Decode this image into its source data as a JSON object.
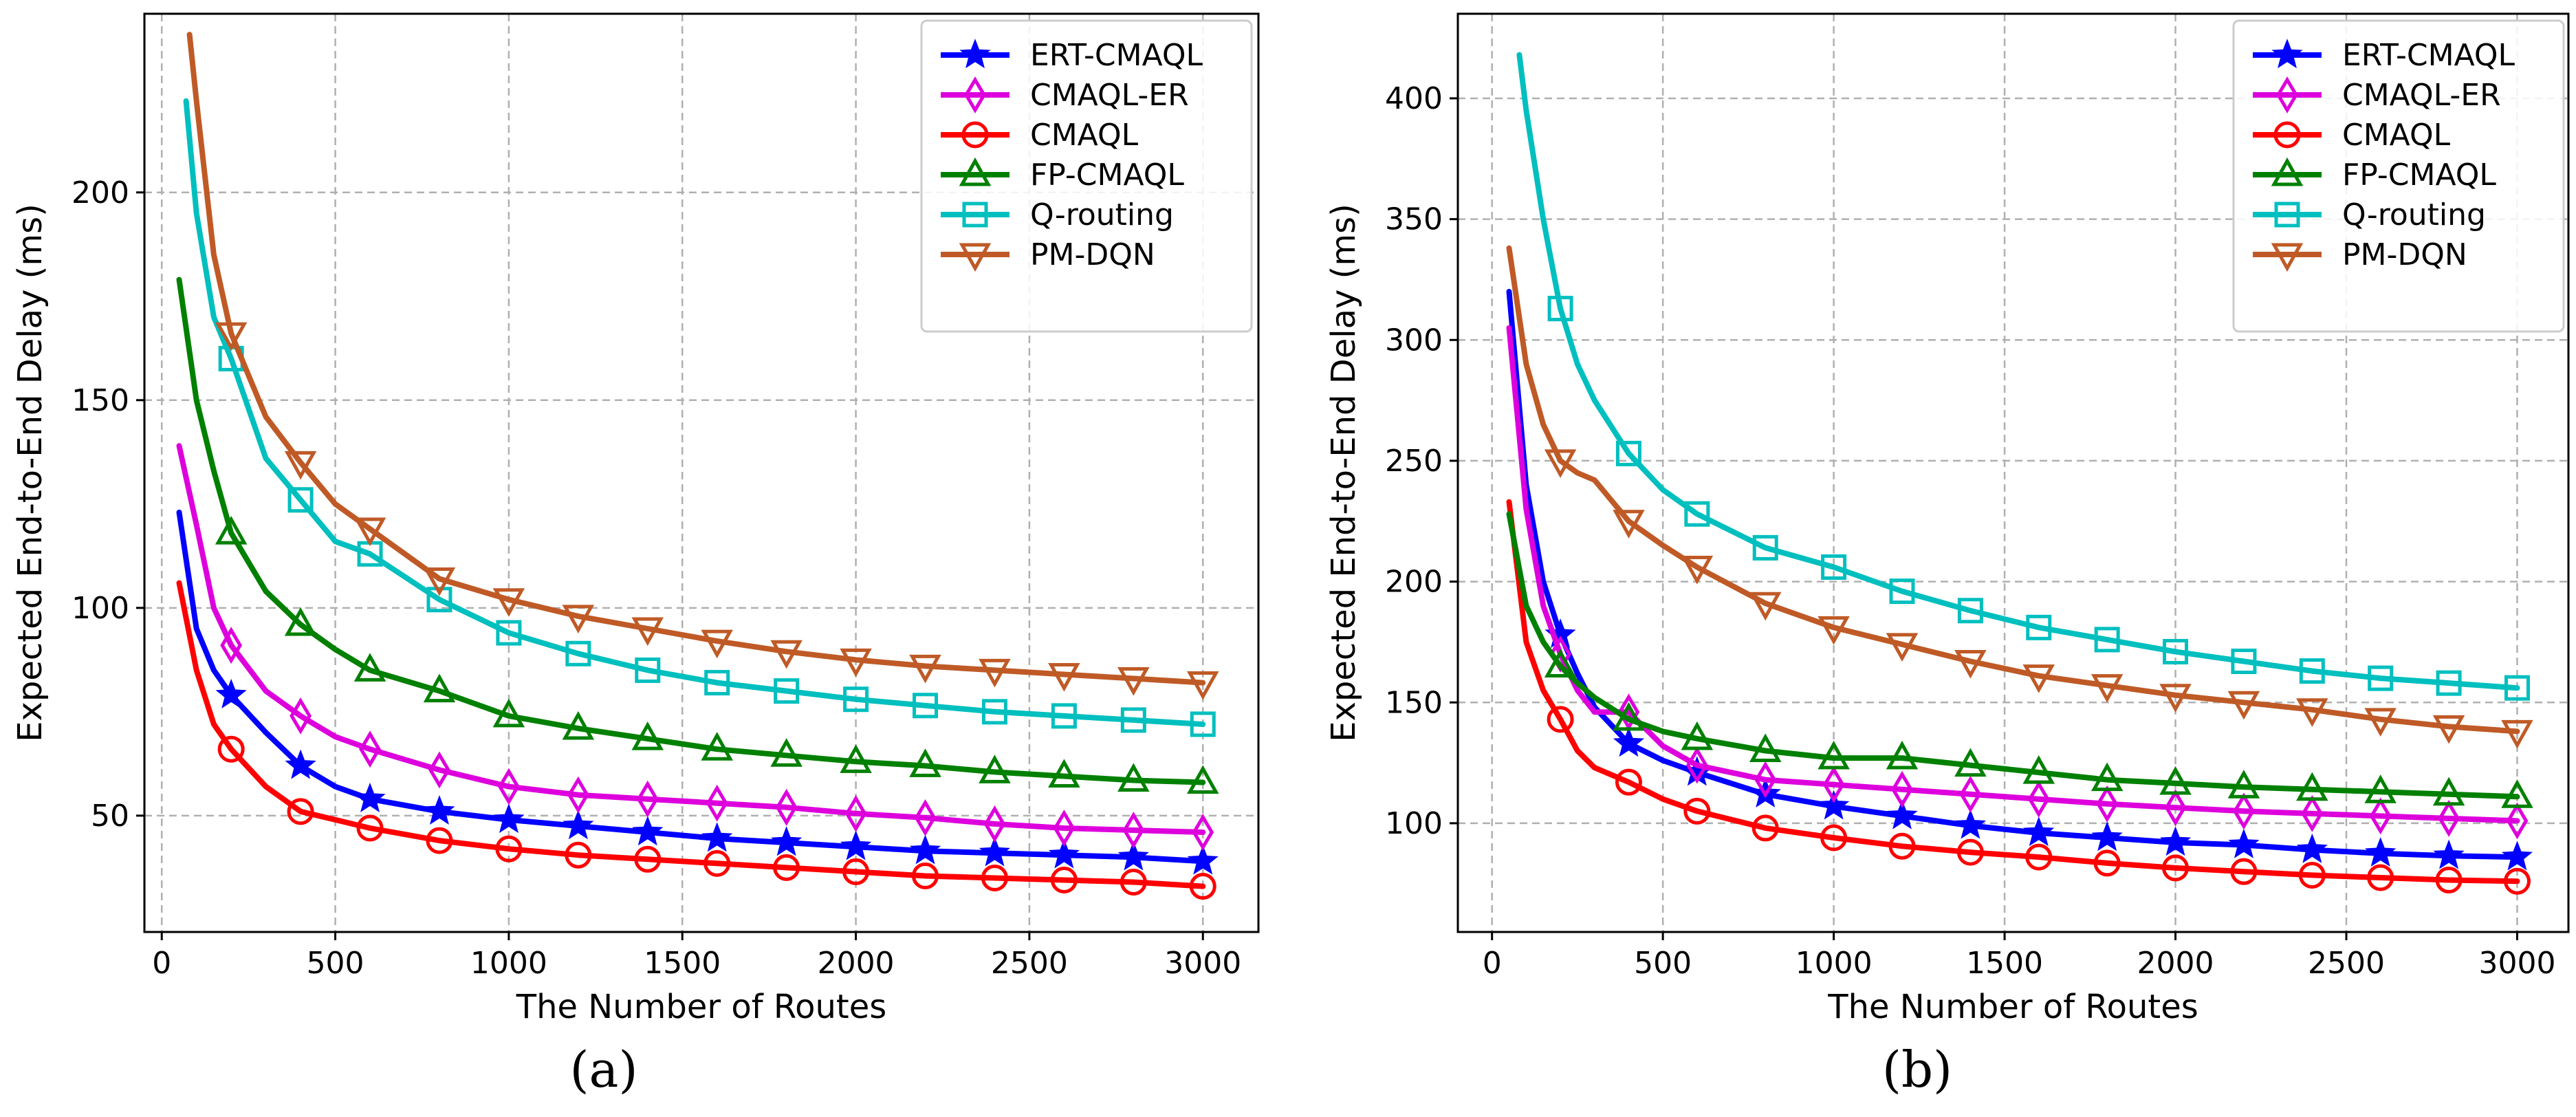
{
  "chart_data": [
    {
      "type": "line",
      "panel_label": "(a)",
      "xlabel": "The Number of Routes",
      "ylabel": "Expected End-to-End Delay (ms)",
      "xlim": [
        -50,
        3160
      ],
      "ylim": [
        22,
        243
      ],
      "xticks": [
        0,
        500,
        1000,
        1500,
        2000,
        2500,
        3000
      ],
      "yticks": [
        50,
        100,
        150,
        200
      ],
      "grid": true,
      "legend_position": "top-right",
      "series": [
        {
          "name": "ERT-CMAQL",
          "color": "#0000ff",
          "marker": "star",
          "x": [
            50,
            100,
            150,
            200,
            300,
            400,
            500,
            600,
            800,
            1000,
            1200,
            1400,
            1600,
            1800,
            2000,
            2200,
            2400,
            2600,
            2800,
            3000
          ],
          "y": [
            123,
            95,
            85,
            79,
            70,
            62,
            57,
            54,
            51,
            49,
            47.5,
            46,
            44.5,
            43.5,
            42.5,
            41.5,
            41,
            40.5,
            40,
            39
          ],
          "marker_x": [
            200,
            400,
            600,
            800,
            1000,
            1200,
            1400,
            1600,
            1800,
            2000,
            2200,
            2400,
            2600,
            2800,
            3000
          ]
        },
        {
          "name": "CMAQL-ER",
          "color": "#dd00dd",
          "marker": "diamond",
          "x": [
            50,
            100,
            150,
            200,
            300,
            400,
            500,
            600,
            800,
            1000,
            1200,
            1400,
            1600,
            1800,
            2000,
            2200,
            2400,
            2600,
            2800,
            3000
          ],
          "y": [
            139,
            120,
            100,
            91,
            80,
            74,
            69,
            66,
            61,
            57,
            55,
            54,
            53,
            52,
            50.5,
            49.5,
            48,
            47,
            46.5,
            46
          ],
          "marker_x": [
            200,
            400,
            600,
            800,
            1000,
            1200,
            1400,
            1600,
            1800,
            2000,
            2200,
            2400,
            2600,
            2800,
            3000
          ]
        },
        {
          "name": "CMAQL",
          "color": "#ff0000",
          "marker": "circle",
          "x": [
            50,
            100,
            150,
            200,
            300,
            400,
            500,
            600,
            800,
            1000,
            1200,
            1400,
            1600,
            1800,
            2000,
            2200,
            2400,
            2600,
            2800,
            3000
          ],
          "y": [
            106,
            85,
            72,
            66,
            57,
            51,
            49,
            47,
            44,
            42,
            40.5,
            39.5,
            38.5,
            37.5,
            36.5,
            35.5,
            35,
            34.5,
            34,
            33
          ],
          "marker_x": [
            200,
            400,
            600,
            800,
            1000,
            1200,
            1400,
            1600,
            1800,
            2000,
            2200,
            2400,
            2600,
            2800,
            3000
          ]
        },
        {
          "name": "FP-CMAQL",
          "color": "#008000",
          "marker": "triangle-up",
          "x": [
            50,
            100,
            150,
            200,
            300,
            400,
            500,
            600,
            800,
            1000,
            1200,
            1400,
            1600,
            1800,
            2000,
            2200,
            2400,
            2600,
            2800,
            3000
          ],
          "y": [
            179,
            150,
            133,
            118,
            104,
            96,
            90,
            85,
            80,
            74,
            71,
            68.5,
            66,
            64.5,
            63,
            62,
            60.5,
            59.5,
            58.5,
            58
          ],
          "marker_x": [
            200,
            400,
            600,
            800,
            1000,
            1200,
            1400,
            1600,
            1800,
            2000,
            2200,
            2400,
            2600,
            2800,
            3000
          ]
        },
        {
          "name": "Q-routing",
          "color": "#00bfbf",
          "marker": "square",
          "x": [
            70,
            100,
            150,
            200,
            300,
            400,
            500,
            600,
            800,
            1000,
            1200,
            1400,
            1600,
            1800,
            2000,
            2200,
            2400,
            2600,
            2800,
            3000
          ],
          "y": [
            222,
            195,
            170,
            160,
            136,
            126,
            116,
            113,
            102,
            94,
            89,
            85,
            82,
            80,
            78,
            76.5,
            75,
            74,
            73,
            72
          ],
          "marker_x": [
            200,
            400,
            600,
            800,
            1000,
            1200,
            1400,
            1600,
            1800,
            2000,
            2200,
            2400,
            2600,
            2800,
            3000
          ]
        },
        {
          "name": "PM-DQN",
          "color": "#bf5a26",
          "marker": "triangle-down",
          "x": [
            80,
            100,
            150,
            200,
            300,
            400,
            500,
            600,
            800,
            1000,
            1200,
            1400,
            1600,
            1800,
            2000,
            2200,
            2400,
            2600,
            2800,
            3000
          ],
          "y": [
            238,
            222,
            185,
            166,
            146,
            135,
            125,
            119,
            107,
            102,
            98,
            95,
            92,
            89.5,
            87.5,
            86,
            85,
            84,
            83,
            82
          ],
          "marker_x": [
            200,
            400,
            600,
            800,
            1000,
            1200,
            1400,
            1600,
            1800,
            2000,
            2200,
            2400,
            2600,
            2800,
            3000
          ]
        }
      ]
    },
    {
      "type": "line",
      "panel_label": "(b)",
      "xlabel": "The Number of Routes",
      "ylabel": "Expected End-to-End Delay (ms)",
      "xlim": [
        -100,
        3150
      ],
      "ylim": [
        55,
        435
      ],
      "xticks": [
        0,
        500,
        1000,
        1500,
        2000,
        2500,
        3000
      ],
      "yticks": [
        100,
        150,
        200,
        250,
        300,
        350,
        400
      ],
      "grid": true,
      "legend_position": "top-right",
      "series": [
        {
          "name": "ERT-CMAQL",
          "color": "#0000ff",
          "marker": "star",
          "x": [
            50,
            100,
            150,
            200,
            250,
            300,
            400,
            500,
            600,
            800,
            1000,
            1200,
            1400,
            1600,
            1800,
            2000,
            2200,
            2400,
            2600,
            2800,
            3000
          ],
          "y": [
            320,
            240,
            200,
            178,
            162,
            148,
            133,
            126,
            121,
            112,
            107,
            103,
            99,
            96,
            94,
            92,
            91,
            89,
            87.5,
            86.5,
            86
          ],
          "marker_x": [
            200,
            400,
            600,
            800,
            1000,
            1200,
            1400,
            1600,
            1800,
            2000,
            2200,
            2400,
            2600,
            2800,
            3000
          ]
        },
        {
          "name": "CMAQL-ER",
          "color": "#dd00dd",
          "marker": "diamond",
          "x": [
            50,
            100,
            150,
            200,
            250,
            300,
            400,
            500,
            600,
            800,
            1000,
            1200,
            1400,
            1600,
            1800,
            2000,
            2200,
            2400,
            2600,
            2800,
            3000
          ],
          "y": [
            305,
            230,
            190,
            170,
            155,
            146,
            146,
            132,
            124,
            118,
            116,
            114,
            112,
            110,
            108,
            106.5,
            105,
            104,
            103,
            102,
            101
          ],
          "marker_x": [
            200,
            400,
            600,
            800,
            1000,
            1200,
            1400,
            1600,
            1800,
            2000,
            2200,
            2400,
            2600,
            2800,
            3000
          ]
        },
        {
          "name": "CMAQL",
          "color": "#ff0000",
          "marker": "circle",
          "x": [
            50,
            100,
            150,
            200,
            250,
            300,
            400,
            500,
            600,
            800,
            1000,
            1200,
            1400,
            1600,
            1800,
            2000,
            2200,
            2400,
            2600,
            2800,
            3000
          ],
          "y": [
            233,
            175,
            155,
            143,
            130,
            123,
            117,
            110,
            105,
            98,
            94,
            90.5,
            88,
            86,
            83.5,
            81.5,
            80,
            78.5,
            77.5,
            76.5,
            76
          ],
          "marker_x": [
            200,
            400,
            600,
            800,
            1000,
            1200,
            1400,
            1600,
            1800,
            2000,
            2200,
            2400,
            2600,
            2800,
            3000
          ]
        },
        {
          "name": "FP-CMAQL",
          "color": "#008000",
          "marker": "triangle-up",
          "x": [
            50,
            100,
            150,
            200,
            250,
            300,
            400,
            500,
            600,
            800,
            1000,
            1200,
            1400,
            1600,
            1800,
            2000,
            2200,
            2400,
            2600,
            2800,
            3000
          ],
          "y": [
            228,
            190,
            175,
            165,
            158,
            152,
            143,
            138,
            135,
            130,
            127,
            127,
            124,
            121,
            118,
            116.5,
            115,
            114,
            113,
            112,
            111
          ],
          "marker_x": [
            200,
            400,
            600,
            800,
            1000,
            1200,
            1400,
            1600,
            1800,
            2000,
            2200,
            2400,
            2600,
            2800,
            3000
          ]
        },
        {
          "name": "Q-routing",
          "color": "#00bfbf",
          "marker": "square",
          "x": [
            80,
            100,
            150,
            200,
            250,
            300,
            400,
            500,
            600,
            800,
            1000,
            1200,
            1400,
            1600,
            1800,
            2000,
            2200,
            2400,
            2600,
            2800,
            3000
          ],
          "y": [
            418,
            395,
            350,
            313,
            290,
            275,
            253,
            238,
            228,
            214,
            206,
            196,
            188,
            181,
            176,
            171,
            167,
            163,
            160,
            158,
            156
          ],
          "marker_x": [
            200,
            400,
            600,
            800,
            1000,
            1200,
            1400,
            1600,
            1800,
            2000,
            2200,
            2400,
            2600,
            2800,
            3000
          ]
        },
        {
          "name": "PM-DQN",
          "color": "#bf5a26",
          "marker": "triangle-down",
          "x": [
            50,
            100,
            150,
            200,
            250,
            300,
            400,
            500,
            600,
            800,
            1000,
            1200,
            1400,
            1600,
            1800,
            2000,
            2200,
            2400,
            2600,
            2800,
            3000
          ],
          "y": [
            338,
            290,
            265,
            250,
            245,
            242,
            225,
            215,
            206,
            191,
            181,
            174,
            167,
            161,
            157,
            153,
            150,
            147,
            143,
            140,
            138
          ],
          "marker_x": [
            200,
            400,
            600,
            800,
            1000,
            1200,
            1400,
            1600,
            1800,
            2000,
            2200,
            2400,
            2600,
            2800,
            3000
          ]
        }
      ]
    }
  ]
}
